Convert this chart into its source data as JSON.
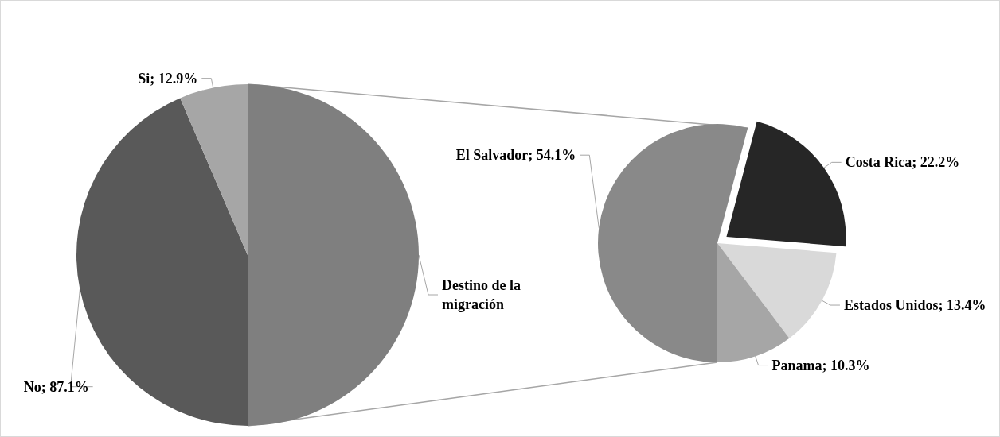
{
  "chart_data": [
    {
      "type": "pie",
      "categories": [
        "Destino de la migración",
        "No",
        "Si"
      ],
      "values": [
        100,
        87.1,
        12.9
      ],
      "colors": [
        "#7f7f7f",
        "#595959",
        "#a6a6a6"
      ],
      "value_labels": [
        null,
        "87.1%",
        "12.9%"
      ]
    },
    {
      "type": "pie",
      "categories": [
        "El Salvador",
        "Costa Rica",
        "Estados Unidos",
        "Panama"
      ],
      "values": [
        54.1,
        22.2,
        13.4,
        10.3
      ],
      "colors": [
        "#898989",
        "#262626",
        "#d9d9d9",
        "#a6a6a6"
      ],
      "value_labels": [
        "54.1%",
        "22.2%",
        "13.4%",
        "10.3%"
      ]
    }
  ]
}
